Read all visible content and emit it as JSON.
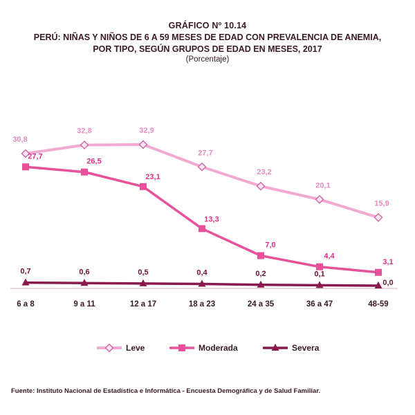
{
  "header": {
    "title_line1": "GRÁFICO Nº 10.14",
    "title_line2": "PERÚ: NIÑAS Y NIÑOS DE 6 A 59 MESES DE EDAD CON PREVALENCIA DE ANEMIA,",
    "title_line3": "POR TIPO, SEGÚN GRUPOS DE EDAD EN MESES, 2017",
    "subtitle": "(Porcentaje)"
  },
  "source": "Fuente: Instituto Nacional de Estadística e Informática - Encuesta Demográfica y de Salud Familiar.",
  "chart_data": {
    "type": "line",
    "title": "PERÚ: NIÑAS Y NIÑOS DE 6 A 59 MESES DE EDAD CON PREVALENCIA DE ANEMIA, POR TIPO, SEGÚN GRUPOS DE EDAD EN MESES, 2017",
    "ylabel": "(Porcentaje)",
    "categories": [
      "6 a 8",
      "9 a 11",
      "12 a 17",
      "18 a 23",
      "24 a 35",
      "36 a 47",
      "48-59"
    ],
    "ylim": [
      0,
      35
    ],
    "grid": false,
    "legend_position": "bottom",
    "series": [
      {
        "name": "Leve",
        "marker": "diamond",
        "color": "#f3aad2",
        "values": [
          30.8,
          32.8,
          32.9,
          27.7,
          23.2,
          20.1,
          15.9
        ],
        "labels": [
          "30,8",
          "32,8",
          "32,9",
          "27,7",
          "23,2",
          "20,1",
          "15,9"
        ],
        "label_color": "#e58cc0"
      },
      {
        "name": "Moderada",
        "marker": "square",
        "color": "#e8509a",
        "values": [
          27.7,
          26.5,
          23.1,
          13.3,
          7.0,
          4.4,
          3.1
        ],
        "labels": [
          "27,7",
          "26,5",
          "23,1",
          "13,3",
          "7,0",
          "4,4",
          "3,1"
        ],
        "label_color": "#e0308a"
      },
      {
        "name": "Severa",
        "marker": "triangle",
        "color": "#8a1a4e",
        "values": [
          0.7,
          0.6,
          0.5,
          0.4,
          0.2,
          0.1,
          0.0
        ],
        "labels": [
          "0,7",
          "0,6",
          "0,5",
          "0,4",
          "0,2",
          "0,1",
          "0,0"
        ],
        "label_color": "#6b1238"
      }
    ]
  }
}
